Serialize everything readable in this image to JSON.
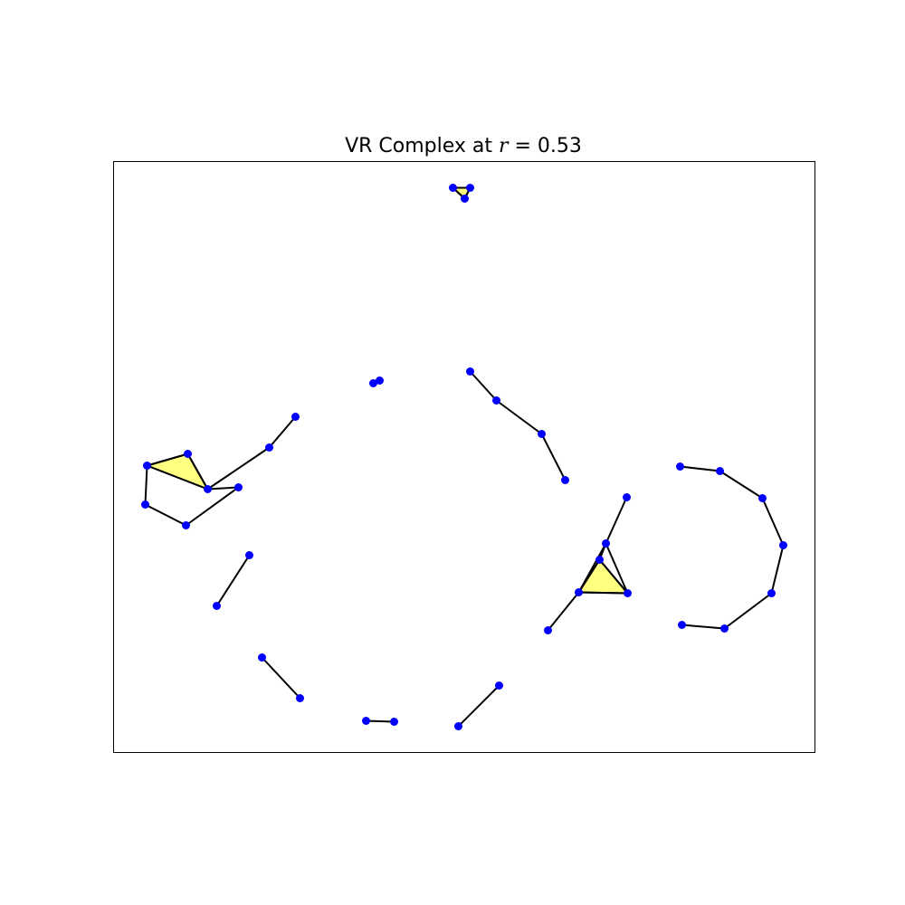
{
  "title": {
    "prefix": "VR Complex at ",
    "variable": "r",
    "suffix": " = 0.53"
  },
  "colors": {
    "vertex": "#0000ff",
    "edge": "#000000",
    "triangle_fill": "#ffff80",
    "frame": "#000000",
    "background": "#ffffff"
  },
  "chart_data": {
    "type": "simplicial-complex",
    "radius": 0.53,
    "xlim": [
      0,
      775
    ],
    "ylim": [
      0,
      653
    ],
    "vertices": [
      {
        "id": 0,
        "x": 375,
        "y": 624
      },
      {
        "id": 1,
        "x": 394,
        "y": 624
      },
      {
        "id": 2,
        "x": 388,
        "y": 612
      },
      {
        "id": 3,
        "x": 287,
        "y": 408
      },
      {
        "id": 4,
        "x": 294,
        "y": 411
      },
      {
        "id": 5,
        "x": 394,
        "y": 421
      },
      {
        "id": 6,
        "x": 423,
        "y": 389
      },
      {
        "id": 7,
        "x": 473,
        "y": 352
      },
      {
        "id": 8,
        "x": 499,
        "y": 301
      },
      {
        "id": 9,
        "x": 201,
        "y": 371
      },
      {
        "id": 10,
        "x": 172,
        "y": 337
      },
      {
        "id": 11,
        "x": 138,
        "y": 293
      },
      {
        "id": 12,
        "x": 82,
        "y": 330
      },
      {
        "id": 13,
        "x": 37,
        "y": 317
      },
      {
        "id": 14,
        "x": 35,
        "y": 274
      },
      {
        "id": 15,
        "x": 80,
        "y": 251
      },
      {
        "id": 16,
        "x": 104,
        "y": 291
      },
      {
        "id": 17,
        "x": 150,
        "y": 218
      },
      {
        "id": 18,
        "x": 114,
        "y": 162
      },
      {
        "id": 19,
        "x": 164,
        "y": 105
      },
      {
        "id": 20,
        "x": 206,
        "y": 60
      },
      {
        "id": 21,
        "x": 279,
        "y": 35
      },
      {
        "id": 22,
        "x": 310,
        "y": 34
      },
      {
        "id": 23,
        "x": 426,
        "y": 74
      },
      {
        "id": 24,
        "x": 381,
        "y": 29
      },
      {
        "id": 25,
        "x": 567,
        "y": 282
      },
      {
        "id": 26,
        "x": 544,
        "y": 231
      },
      {
        "id": 27,
        "x": 537,
        "y": 213
      },
      {
        "id": 28,
        "x": 514,
        "y": 177
      },
      {
        "id": 29,
        "x": 568,
        "y": 176
      },
      {
        "id": 30,
        "x": 480,
        "y": 135
      },
      {
        "id": 31,
        "x": 626,
        "y": 316
      },
      {
        "id": 32,
        "x": 670,
        "y": 311
      },
      {
        "id": 33,
        "x": 717,
        "y": 281
      },
      {
        "id": 34,
        "x": 740,
        "y": 229
      },
      {
        "id": 35,
        "x": 727,
        "y": 176
      },
      {
        "id": 36,
        "x": 675,
        "y": 137
      },
      {
        "id": 37,
        "x": 628,
        "y": 141
      }
    ],
    "edges": [
      [
        0,
        1
      ],
      [
        1,
        2
      ],
      [
        2,
        0
      ],
      [
        3,
        4
      ],
      [
        5,
        6
      ],
      [
        6,
        7
      ],
      [
        7,
        8
      ],
      [
        9,
        10
      ],
      [
        10,
        16
      ],
      [
        11,
        16
      ],
      [
        11,
        15
      ],
      [
        15,
        14
      ],
      [
        14,
        13
      ],
      [
        13,
        16
      ],
      [
        16,
        12
      ],
      [
        12,
        13
      ],
      [
        17,
        18
      ],
      [
        19,
        20
      ],
      [
        21,
        22
      ],
      [
        23,
        24
      ],
      [
        25,
        26
      ],
      [
        26,
        27
      ],
      [
        27,
        28
      ],
      [
        28,
        29
      ],
      [
        27,
        29
      ],
      [
        26,
        29
      ],
      [
        26,
        28
      ],
      [
        28,
        30
      ],
      [
        31,
        32
      ],
      [
        32,
        33
      ],
      [
        33,
        34
      ],
      [
        34,
        35
      ],
      [
        35,
        36
      ],
      [
        36,
        37
      ]
    ],
    "triangles": [
      [
        0,
        1,
        2
      ],
      [
        13,
        16,
        12
      ],
      [
        27,
        28,
        29
      ]
    ],
    "grid": false,
    "axis_ticks": false
  }
}
